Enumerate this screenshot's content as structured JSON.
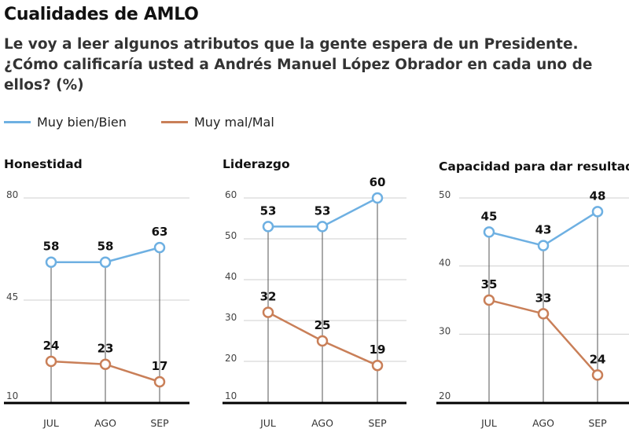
{
  "title": "Cualidades de AMLO",
  "subtitle": "Le voy a leer algunos atributos que la gente espera de un Presidente. ¿Cómo calificaría usted a Andrés Manuel López Obrador en cada uno de ellos? (%)",
  "legend": [
    {
      "label": "Muy bien/Bien",
      "color": "#6eb0e2"
    },
    {
      "label": "Muy mal/Mal",
      "color": "#c97f58"
    }
  ],
  "chart_data": [
    {
      "type": "line",
      "title": "Honestidad",
      "categories": [
        "JUL",
        "AGO",
        "SEP"
      ],
      "yticks": [
        10,
        45,
        80
      ],
      "ylim": [
        10,
        80
      ],
      "series": [
        {
          "name": "Muy bien/Bien",
          "values": [
            58,
            58,
            63
          ]
        },
        {
          "name": "Muy mal/Mal",
          "values": [
            24,
            23,
            17
          ]
        }
      ]
    },
    {
      "type": "line",
      "title": "Liderazgo",
      "categories": [
        "JUL",
        "AGO",
        "SEP"
      ],
      "yticks": [
        10,
        20,
        30,
        40,
        50,
        60
      ],
      "ylim": [
        10,
        60
      ],
      "series": [
        {
          "name": "Muy bien/Bien",
          "values": [
            53,
            53,
            60
          ]
        },
        {
          "name": "Muy mal/Mal",
          "values": [
            32,
            25,
            19
          ]
        }
      ]
    },
    {
      "type": "line",
      "title": "Capacidad para dar resultados",
      "categories": [
        "JUL",
        "AGO",
        "SEP"
      ],
      "yticks": [
        20,
        30,
        40,
        50
      ],
      "ylim": [
        20,
        50
      ],
      "series": [
        {
          "name": "Muy bien/Bien",
          "values": [
            45,
            43,
            48
          ]
        },
        {
          "name": "Muy mal/Mal",
          "values": [
            35,
            33,
            24
          ]
        }
      ]
    }
  ]
}
